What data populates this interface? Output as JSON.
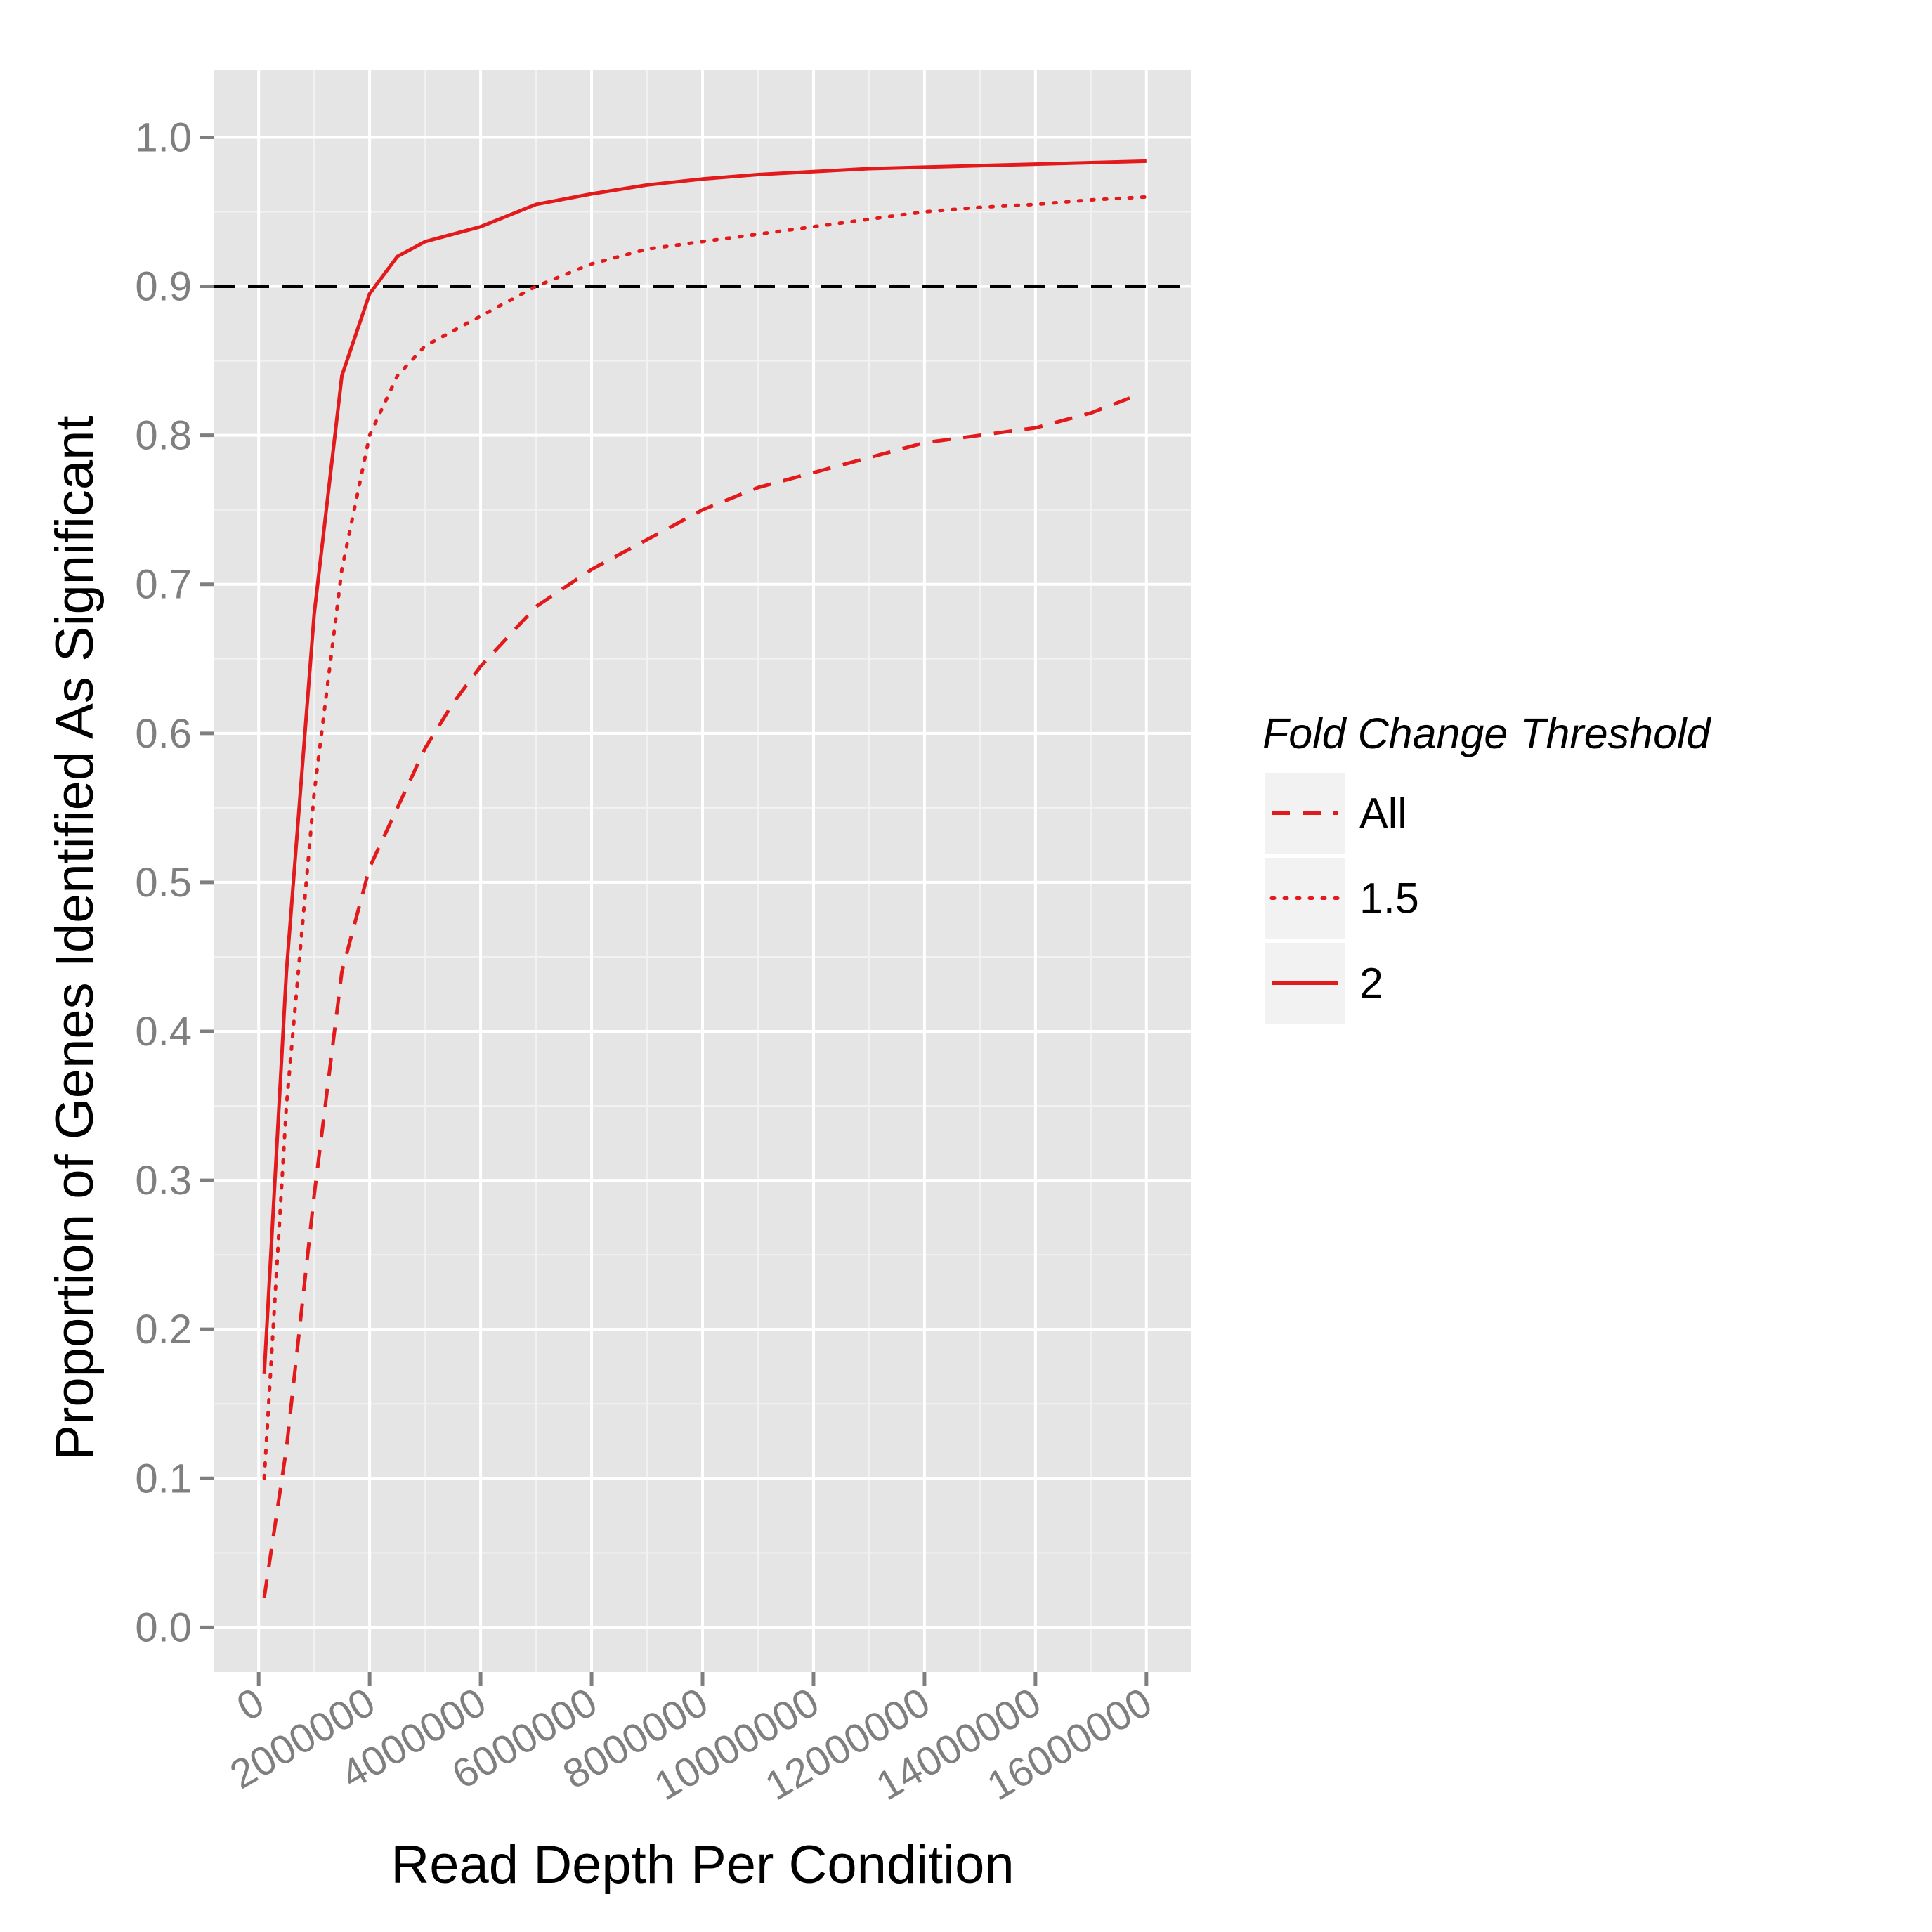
{
  "chart_data": {
    "type": "line",
    "title": "",
    "xlabel": "Read Depth Per Condition",
    "ylabel": "Proportion of Genes Identified As Significant",
    "xlim": [
      -800000,
      16800000
    ],
    "ylim": [
      -0.03,
      1.045
    ],
    "x_ticks": [
      0,
      2000000,
      4000000,
      6000000,
      8000000,
      10000000,
      12000000,
      14000000,
      16000000
    ],
    "x_tick_labels": [
      "0",
      "2000000",
      "4000000",
      "6000000",
      "8000000",
      "10000000",
      "12000000",
      "14000000",
      "16000000"
    ],
    "y_ticks": [
      0.0,
      0.1,
      0.2,
      0.3,
      0.4,
      0.5,
      0.6,
      0.7,
      0.8,
      0.9,
      1.0
    ],
    "y_tick_labels": [
      "0.0",
      "0.1",
      "0.2",
      "0.3",
      "0.4",
      "0.5",
      "0.6",
      "0.7",
      "0.8",
      "0.9",
      "1.0"
    ],
    "grid": true,
    "background_color": "#e5e5e5",
    "grid_color": "#ffffff",
    "reference_line": {
      "y": 0.9,
      "color": "#000000",
      "style": "dashed"
    },
    "legend": {
      "title": "Fold Change Threshold",
      "placement": "right"
    },
    "series": [
      {
        "name": "All",
        "color": "#e31a1c",
        "style": "dashed",
        "x": [
          100000,
          500000,
          1000000,
          1500000,
          2000000,
          2500000,
          3000000,
          3500000,
          4000000,
          5000000,
          6000000,
          7000000,
          8000000,
          9000000,
          10000000,
          11000000,
          12000000,
          13000000,
          14000000,
          15000000,
          15700000
        ],
        "y": [
          0.02,
          0.12,
          0.29,
          0.44,
          0.51,
          0.55,
          0.59,
          0.62,
          0.645,
          0.685,
          0.71,
          0.73,
          0.75,
          0.765,
          0.775,
          0.785,
          0.795,
          0.8,
          0.805,
          0.815,
          0.825
        ]
      },
      {
        "name": "1.5",
        "color": "#e31a1c",
        "style": "dotted",
        "x": [
          100000,
          500000,
          1000000,
          1500000,
          2000000,
          2500000,
          3000000,
          3500000,
          4000000,
          5000000,
          6000000,
          7000000,
          8000000,
          9000000,
          10000000,
          11000000,
          12000000,
          13000000,
          14000000,
          15000000,
          16000000
        ],
        "y": [
          0.1,
          0.35,
          0.56,
          0.71,
          0.8,
          0.84,
          0.86,
          0.87,
          0.88,
          0.9,
          0.915,
          0.925,
          0.93,
          0.935,
          0.94,
          0.945,
          0.95,
          0.953,
          0.955,
          0.958,
          0.96
        ]
      },
      {
        "name": "2",
        "color": "#e31a1c",
        "style": "solid",
        "x": [
          100000,
          500000,
          1000000,
          1500000,
          2000000,
          2500000,
          3000000,
          3500000,
          4000000,
          5000000,
          6000000,
          7000000,
          8000000,
          9000000,
          10000000,
          11000000,
          12000000,
          13000000,
          14000000,
          15000000,
          16000000
        ],
        "y": [
          0.17,
          0.44,
          0.68,
          0.84,
          0.895,
          0.92,
          0.93,
          0.935,
          0.94,
          0.955,
          0.962,
          0.968,
          0.972,
          0.975,
          0.977,
          0.979,
          0.98,
          0.981,
          0.982,
          0.983,
          0.984
        ]
      }
    ]
  }
}
